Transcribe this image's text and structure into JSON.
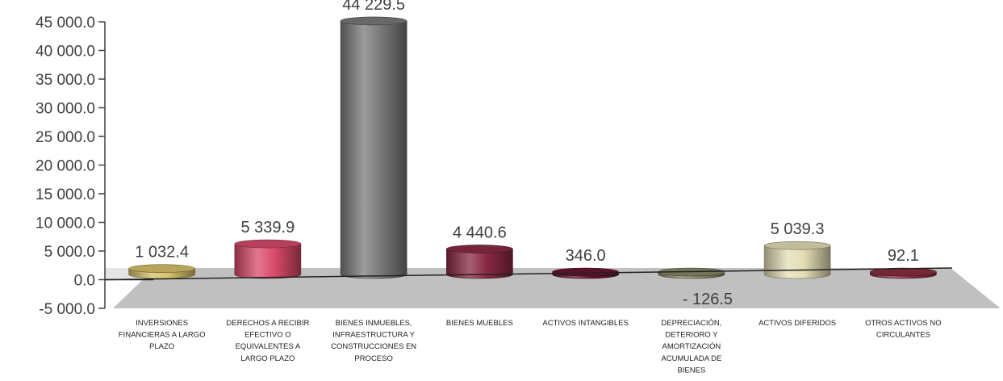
{
  "chart_data": {
    "type": "bar",
    "style": "3d-cylinder",
    "categories": [
      [
        "INVERSIONES",
        "FINANCIERAS  A LARGO",
        "PLAZO"
      ],
      [
        "DERECHOS  A RECIBIR",
        "EFECTIVO O",
        "EQUIVALENTES  A",
        "LARGO  PLAZO"
      ],
      [
        "BIENES INMUEBLES,",
        "INFRAESTRUCTURA  Y",
        "CONSTRUCCIONES   EN",
        "PROCESO"
      ],
      [
        "BIENES MUEBLES"
      ],
      [
        "ACTIVOS INTANGIBLES"
      ],
      [
        "DEPRECIACIÓN,",
        "DETERIORO Y",
        "AMORTIZACIÓN",
        "ACUMULADA  DE",
        "BIENES"
      ],
      [
        "ACTIVOS DIFERIDOS"
      ],
      [
        "OTROS ACTIVOS NO",
        "CIRCULANTES"
      ]
    ],
    "values": [
      1032.4,
      5339.9,
      44229.5,
      4440.6,
      346.0,
      -126.5,
      5039.3,
      92.1
    ],
    "value_labels": [
      "1 032.4",
      "5 339.9",
      "44 229.5",
      "4 440.6",
      "346.0",
      "- 126.5",
      "5 039.3",
      "92.1"
    ],
    "colors": [
      "#d6c26a",
      "#d94a6a",
      "#7a7a7a",
      "#8a2a44",
      "#6a1430",
      "#8a8a6a",
      "#e3ddb5",
      "#8a3040"
    ],
    "y_ticks": [
      "45 000.0",
      "40 000.0",
      "35 000.0",
      "30 000.0",
      "25 000.0",
      "20 000.0",
      "15 000.0",
      "10 000.0",
      "5 000.0",
      "0.0",
      "-5 000.0"
    ],
    "y_tick_values": [
      45000,
      40000,
      35000,
      30000,
      25000,
      20000,
      15000,
      10000,
      5000,
      0,
      -5000
    ],
    "ylim": [
      -5000,
      45000
    ],
    "title": "",
    "xlabel": "",
    "ylabel": "",
    "grid": false,
    "legend": "none"
  }
}
